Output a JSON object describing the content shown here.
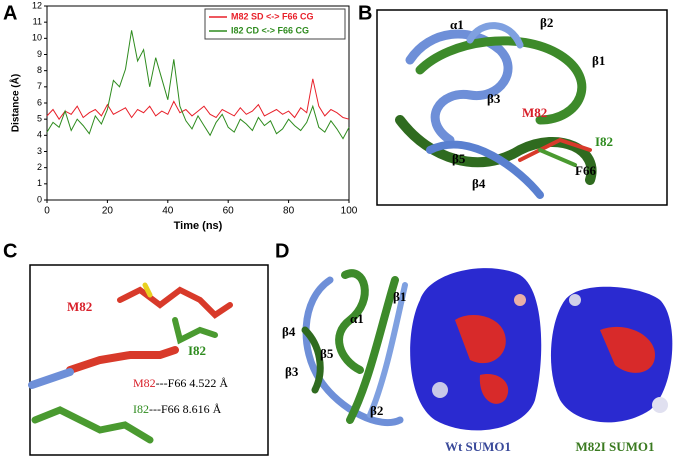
{
  "chart_data": {
    "type": "line",
    "panel_label": "A",
    "x_label": "Time (ns)",
    "y_label": "Distance (Å)",
    "x": [
      0,
      2,
      4,
      6,
      8,
      10,
      12,
      14,
      16,
      18,
      20,
      22,
      24,
      26,
      28,
      30,
      32,
      34,
      36,
      38,
      40,
      42,
      44,
      46,
      48,
      50,
      52,
      54,
      56,
      58,
      60,
      62,
      64,
      66,
      68,
      70,
      72,
      74,
      76,
      78,
      80,
      82,
      84,
      86,
      88,
      90,
      92,
      94,
      96,
      98,
      100
    ],
    "series": [
      {
        "name": "M82 SD <-> F66 CG",
        "color": "#e8202a",
        "values": [
          5.2,
          5.6,
          5.0,
          5.5,
          5.3,
          5.8,
          5.1,
          5.4,
          5.6,
          5.2,
          5.9,
          5.3,
          5.5,
          5.7,
          5.1,
          5.6,
          5.4,
          5.8,
          5.2,
          5.5,
          5.3,
          6.1,
          5.4,
          5.6,
          5.2,
          5.5,
          5.8,
          5.3,
          5.1,
          5.6,
          5.4,
          5.2,
          5.7,
          5.3,
          5.5,
          5.9,
          5.2,
          5.4,
          5.6,
          5.3,
          5.5,
          5.1,
          5.7,
          5.4,
          7.5,
          5.8,
          5.2,
          5.6,
          5.4,
          5.1,
          5.0
        ]
      },
      {
        "name": "I82 CD <-> F66 CG",
        "color": "#2e8b1e",
        "values": [
          4.2,
          4.8,
          4.5,
          5.5,
          4.3,
          5.0,
          4.6,
          4.1,
          5.2,
          4.7,
          5.6,
          7.4,
          7.0,
          8.1,
          10.5,
          8.6,
          9.3,
          7.0,
          8.8,
          7.5,
          6.2,
          8.7,
          5.8,
          4.9,
          4.4,
          5.2,
          4.6,
          4.0,
          4.8,
          5.3,
          4.5,
          4.2,
          5.0,
          4.7,
          4.3,
          5.1,
          4.6,
          4.9,
          4.1,
          4.4,
          5.0,
          4.6,
          4.3,
          4.8,
          5.8,
          4.5,
          4.2,
          4.9,
          4.4,
          3.8,
          4.5
        ]
      }
    ],
    "xlim": [
      0,
      100
    ],
    "xticks": [
      0,
      20,
      40,
      60,
      80,
      100
    ],
    "ylim": [
      0,
      12
    ],
    "yticks": [
      0,
      1,
      2,
      3,
      4,
      5,
      6,
      7,
      8,
      9,
      10,
      11,
      12
    ],
    "legend": "upper-right"
  },
  "panels": {
    "b": {
      "label": "B",
      "alpha1": "α1",
      "beta2": "β2",
      "beta1": "β1",
      "beta3": "β3",
      "m82": "M82",
      "i82": "I82",
      "beta5": "β5",
      "beta4": "β4",
      "f66": "F66"
    },
    "c": {
      "label": "C",
      "m82": "M82",
      "i82": "I82",
      "m82_res": "M82",
      "m82_dist": "---F66 4.522 Å",
      "i82_res": "I82",
      "i82_dist": "---F66  8.616 Å"
    },
    "d": {
      "label": "D",
      "beta1": "β1",
      "alpha1": "α1",
      "beta4": "β4",
      "beta5": "β5",
      "beta3": "β3",
      "beta2": "β2",
      "wt": "Wt SUMO1",
      "mut": "M82I SUMO1"
    }
  }
}
